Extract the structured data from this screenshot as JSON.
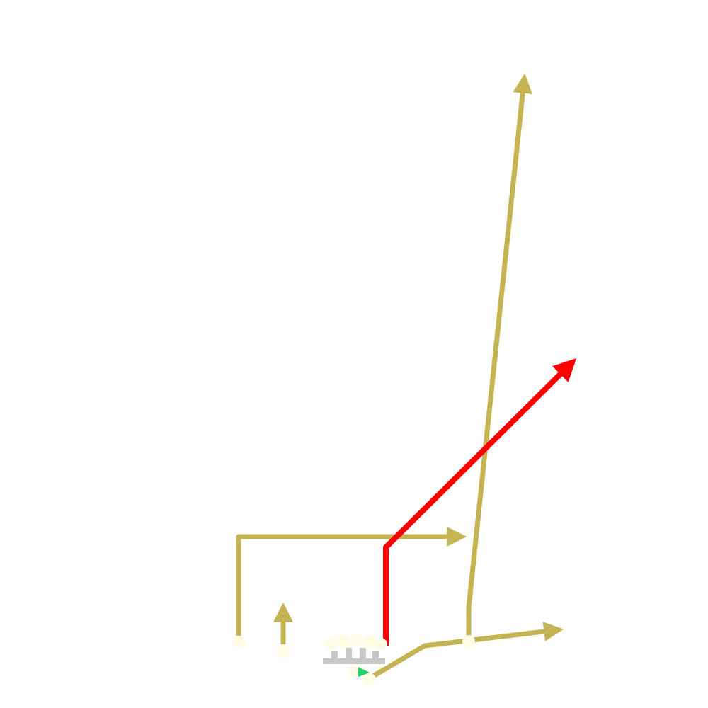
{
  "colors": {
    "background": "#ffffff",
    "route": "#c4b454",
    "primary_route": "#ff0000",
    "player_fill": "#fffde6",
    "line_block": "#c8c8c8",
    "ball_arrow": "#22cc66"
  },
  "diagram": {
    "type": "football-play-diagram",
    "routes": [
      {
        "id": "route-left-corner",
        "color_key": "route",
        "shape": "vertical-then-right",
        "arrow": true
      },
      {
        "id": "route-short-up",
        "color_key": "route",
        "shape": "short-vertical",
        "arrow": true
      },
      {
        "id": "route-red-post",
        "color_key": "primary_route",
        "shape": "vertical-then-diagonal-right",
        "arrow": true
      },
      {
        "id": "route-deep-go",
        "color_key": "route",
        "shape": "long-vertical",
        "arrow": true
      },
      {
        "id": "route-flat-right",
        "color_key": "route",
        "shape": "diagonal-then-right",
        "arrow": true
      }
    ],
    "players": [
      "player-left-receiver",
      "player-slot-receiver",
      "player-line-1",
      "player-line-2",
      "player-line-3",
      "player-line-4",
      "player-line-5",
      "player-quarterback",
      "player-running-back",
      "player-right-receiver"
    ],
    "ball_indicator": "snap-arrow-icon"
  }
}
